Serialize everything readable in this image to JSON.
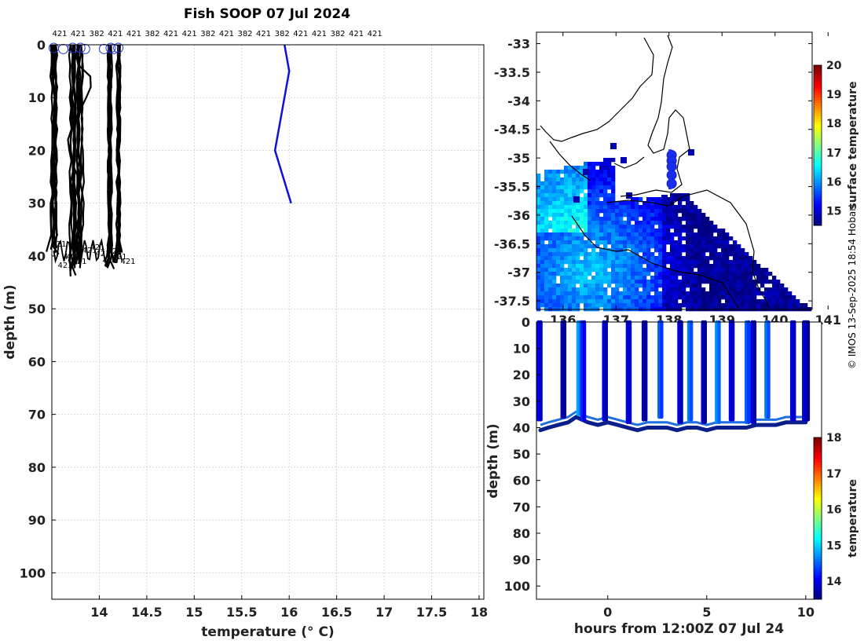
{
  "title": "Fish SOOP 07 Jul 2024",
  "credit": "© IMOS 13-Sep-2025 18:54 Hobart",
  "colors": {
    "profile_line": "#000000",
    "highlight_line": "#1010dd",
    "circle": "#2233cc",
    "grid": "#c8c8c8",
    "land_outline": "#000000"
  },
  "chart_data": [
    {
      "id": "profile",
      "type": "line",
      "title": "Fish SOOP 07 Jul 2024",
      "xlabel": "temperature (° C)",
      "ylabel": "depth (m)",
      "xlim": [
        13.5,
        18.05
      ],
      "ylim": [
        105,
        0
      ],
      "x_ticks": [
        "14",
        "14.5",
        "15",
        "15.5",
        "16",
        "16.5",
        "17",
        "17.5",
        "18"
      ],
      "y_ticks": [
        "0",
        "10",
        "20",
        "30",
        "40",
        "50",
        "60",
        "70",
        "80",
        "90",
        "100"
      ],
      "grid": true,
      "top_labels": [
        "421",
        "421",
        "382",
        "421",
        "421",
        "382",
        "421",
        "421",
        "382",
        "421",
        "382",
        "421",
        "382",
        "421",
        "421",
        "382",
        "421",
        "421"
      ],
      "bottom_labels": [
        "421",
        "421",
        "421",
        "421",
        "421",
        "421",
        "421",
        "421",
        "421",
        "421",
        "421",
        "421"
      ],
      "highlight_series": {
        "name": "382",
        "temperature": [
          15.95,
          16.0,
          15.85,
          16.02
        ],
        "depth": [
          0,
          5,
          20,
          30
        ]
      },
      "profile_clusters": [
        {
          "name": "cluster-1",
          "temperature": 13.52,
          "max_depth": 38
        },
        {
          "name": "cluster-2",
          "temperature": 13.72,
          "max_depth": 41
        },
        {
          "name": "cluster-3",
          "temperature": 13.8,
          "max_depth": 40
        },
        {
          "name": "cluster-4",
          "temperature": 14.12,
          "max_depth": 40
        },
        {
          "name": "cluster-5",
          "temperature": 14.2,
          "max_depth": 39
        }
      ]
    },
    {
      "id": "map",
      "type": "heatmap",
      "title": "",
      "xlabel": "",
      "ylabel": "",
      "xlim": [
        135.5,
        140.7
      ],
      "ylim": [
        -37.65,
        -32.8
      ],
      "x_ticks": [
        "136",
        "137",
        "138",
        "139",
        "140",
        "141"
      ],
      "y_ticks": [
        "-33",
        "-33.5",
        "-34",
        "-34.5",
        "-35",
        "-35.5",
        "-36",
        "-36.5",
        "-37",
        "-37.5"
      ],
      "colorbar": {
        "label": "surface temperature",
        "range": [
          14.5,
          20
        ],
        "ticks": [
          "15",
          "16",
          "17",
          "18",
          "19",
          "20"
        ]
      },
      "track": {
        "lon": [
          138.05,
          138.05,
          138.05,
          138.05,
          138.05
        ],
        "lat": [
          -34.95,
          -35.05,
          -35.15,
          -35.3,
          -35.45
        ]
      }
    },
    {
      "id": "section",
      "type": "scatter",
      "title": "",
      "xlabel": "hours from 12:00Z 07 Jul 24",
      "ylabel": "depth (m)",
      "xlim": [
        -3.6,
        10.8
      ],
      "ylim": [
        105,
        0
      ],
      "x_ticks": [
        "0",
        "5",
        "10"
      ],
      "y_ticks": [
        "0",
        "10",
        "20",
        "30",
        "40",
        "50",
        "60",
        "70",
        "80",
        "90",
        "100"
      ],
      "colorbar": {
        "label": "temperature",
        "range": [
          13.5,
          18
        ],
        "ticks": [
          "14",
          "15",
          "16",
          "17",
          "18"
        ]
      },
      "casts_hours": [
        -3.5,
        -2.3,
        -1.5,
        -1.3,
        -0.2,
        1.0,
        1.8,
        2.6,
        3.6,
        4.1,
        4.8,
        5.5,
        6.2,
        7.0,
        7.3,
        8.0,
        9.3,
        9.9,
        10.0
      ],
      "cast_max_depth": [
        37,
        36,
        35,
        37,
        37,
        38,
        37,
        36,
        38,
        37,
        38,
        38,
        37,
        38,
        38,
        36,
        37,
        37,
        37
      ],
      "cast_temperature": [
        14.0,
        13.8,
        14.8,
        14.2,
        13.9,
        14.0,
        13.8,
        14.5,
        13.9,
        14.6,
        13.8,
        14.7,
        14.0,
        14.5,
        13.9,
        14.6,
        14.0,
        13.9,
        13.8
      ],
      "bottom_hours": [
        -3.4,
        -3.0,
        -2.5,
        -2.0,
        -1.6,
        -1.0,
        -0.5,
        0,
        0.5,
        1.0,
        1.5,
        2.0,
        2.5,
        3.0,
        3.5,
        4.0,
        4.5,
        5.0,
        5.5,
        6.0,
        6.5,
        7.0,
        7.5,
        8.0,
        8.5,
        9.0,
        9.5,
        10.0
      ],
      "bottom_depth": [
        41,
        40,
        39,
        38,
        36,
        38,
        39,
        38,
        39,
        40,
        41,
        40,
        40,
        40,
        41,
        40,
        40,
        41,
        40,
        40,
        40,
        40,
        39,
        39,
        39,
        38,
        38,
        38
      ]
    }
  ]
}
